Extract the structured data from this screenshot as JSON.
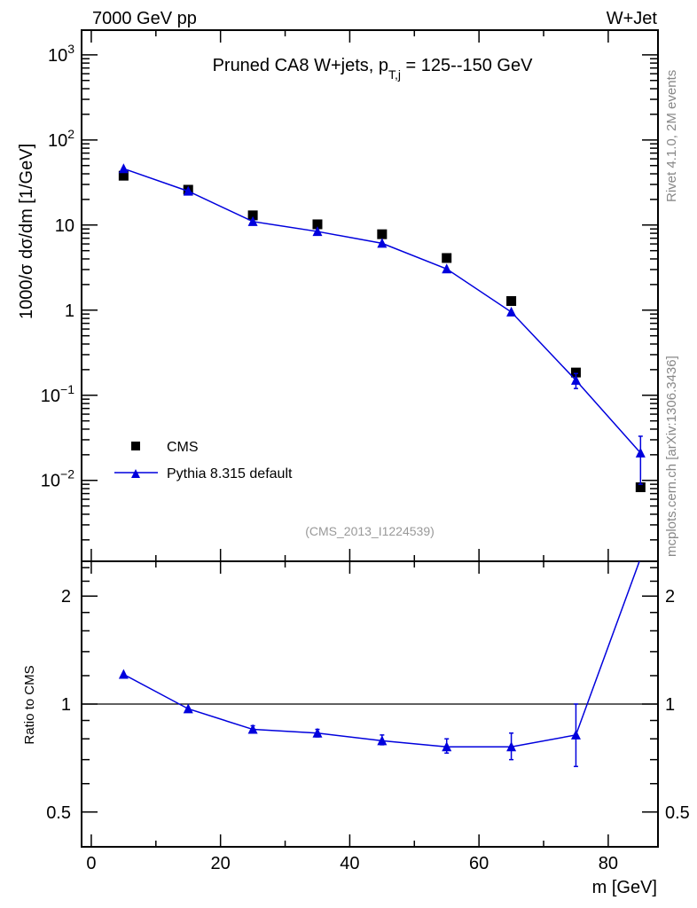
{
  "header": {
    "left": "7000 GeV pp",
    "right": "W+Jet"
  },
  "side": {
    "rivet": "Rivet 4.1.0,  2M events",
    "mcplots": "mcplots.cern.ch [arXiv:1306.3436]"
  },
  "colors": {
    "data": "#000000",
    "mc": "#0000dd"
  },
  "chart_data": [
    {
      "type": "scatter",
      "title_main": "Pruned CA8 W+jets, p",
      "title_sub": "T,j",
      "title_rest": " = 125--150 GeV",
      "ylabel": "1000/σ  dσ/dm [1/GeV]",
      "analysis": "(CMS_2013_I1224539)",
      "yscale": "log",
      "ylim": [
        0.00112,
        1950
      ],
      "xlim": [
        -1.5,
        87.7
      ],
      "ytick_labels": [
        {
          "v": 1000,
          "base": "10",
          "exp": "3"
        },
        {
          "v": 100,
          "base": "10",
          "exp": "2"
        },
        {
          "v": 10,
          "base": "10",
          "exp": ""
        },
        {
          "v": 1,
          "base": "1",
          "exp": ""
        },
        {
          "v": 0.1,
          "base": "10",
          "exp": "−1"
        },
        {
          "v": 0.01,
          "base": "10",
          "exp": "−2"
        }
      ],
      "x": [
        5,
        15,
        25,
        35,
        45,
        55,
        65,
        75,
        85
      ],
      "series": [
        {
          "name": "CMS",
          "marker": "square",
          "values": [
            38,
            26,
            13,
            10.2,
            7.8,
            4.1,
            1.28,
            0.185,
            0.0083
          ]
        },
        {
          "name": "Pythia 8.315 default",
          "marker": "triangle",
          "values": [
            46,
            25,
            11,
            8.4,
            6.1,
            3.05,
            0.95,
            0.15,
            0.021
          ],
          "err_low": [
            46,
            25,
            11,
            8.4,
            6.1,
            3.05,
            0.95,
            0.12,
            0.009
          ],
          "err_high": [
            46,
            25,
            11,
            8.4,
            6.1,
            3.05,
            0.95,
            0.18,
            0.033
          ]
        }
      ],
      "legend": "bottom-left"
    },
    {
      "type": "line",
      "ylabel": "Ratio to CMS",
      "xlabel": "m [GeV]",
      "yscale": "log",
      "ylim": [
        0.4,
        2.5
      ],
      "xlim": [
        -1.5,
        87.7
      ],
      "ytick_labels": [
        "2",
        "1",
        "0.5"
      ],
      "ytick_values": [
        2,
        1,
        0.5
      ],
      "xtick_labels": [
        "0",
        "20",
        "40",
        "60",
        "80"
      ],
      "xtick_values": [
        0,
        20,
        40,
        60,
        80
      ],
      "x": [
        5,
        15,
        25,
        35,
        45,
        55,
        65,
        75,
        85
      ],
      "values": [
        1.21,
        0.97,
        0.85,
        0.83,
        0.79,
        0.76,
        0.76,
        0.82,
        2.55
      ],
      "err_low": [
        1.21,
        0.97,
        0.83,
        0.81,
        0.77,
        0.73,
        0.7,
        0.67,
        2.55
      ],
      "err_high": [
        1.21,
        0.97,
        0.87,
        0.85,
        0.82,
        0.8,
        0.83,
        1.0,
        2.55
      ]
    }
  ]
}
